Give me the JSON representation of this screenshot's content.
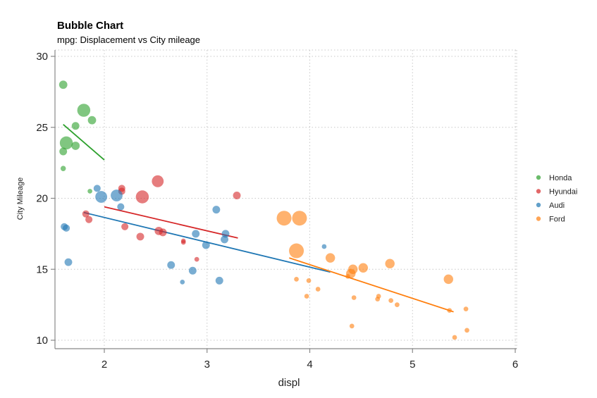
{
  "chart_data": {
    "type": "scatter",
    "title": "Bubble Chart",
    "subtitle": "mpg: Displacement vs City mileage",
    "xlabel": "displ",
    "ylabel": "City Mileage",
    "xlim": [
      1.5,
      6.0
    ],
    "ylim": [
      10,
      30
    ],
    "xticks": [
      "2",
      "3",
      "4",
      "5",
      "6"
    ],
    "yticks": [
      "10",
      "15",
      "20",
      "25",
      "30"
    ],
    "grid": true,
    "legend_position": "right",
    "series": [
      {
        "name": "Honda",
        "color": "#2ca02c",
        "points": [
          {
            "x": 1.6,
            "y": 28.0,
            "s": 1.4
          },
          {
            "x": 1.8,
            "y": 26.2,
            "s": 2.2
          },
          {
            "x": 1.88,
            "y": 25.5,
            "s": 1.4
          },
          {
            "x": 1.72,
            "y": 25.1,
            "s": 1.3
          },
          {
            "x": 1.63,
            "y": 23.9,
            "s": 2.2
          },
          {
            "x": 1.72,
            "y": 23.7,
            "s": 1.4
          },
          {
            "x": 1.6,
            "y": 23.3,
            "s": 1.3
          },
          {
            "x": 1.6,
            "y": 22.1,
            "s": 0.9
          },
          {
            "x": 1.86,
            "y": 20.5,
            "s": 0.8
          }
        ],
        "fit": [
          [
            1.6,
            25.2
          ],
          [
            2.0,
            22.7
          ]
        ]
      },
      {
        "name": "Hyundai",
        "color": "#d62728",
        "points": [
          {
            "x": 1.82,
            "y": 18.9,
            "s": 1.2
          },
          {
            "x": 1.85,
            "y": 18.5,
            "s": 1.2
          },
          {
            "x": 2.17,
            "y": 20.7,
            "s": 1.2
          },
          {
            "x": 2.17,
            "y": 20.5,
            "s": 1.2
          },
          {
            "x": 2.37,
            "y": 20.1,
            "s": 2.2
          },
          {
            "x": 2.52,
            "y": 21.2,
            "s": 2.0
          },
          {
            "x": 3.29,
            "y": 20.2,
            "s": 1.3
          },
          {
            "x": 2.2,
            "y": 18.0,
            "s": 1.2
          },
          {
            "x": 2.53,
            "y": 17.7,
            "s": 1.4
          },
          {
            "x": 2.57,
            "y": 17.6,
            "s": 1.3
          },
          {
            "x": 2.35,
            "y": 17.3,
            "s": 1.3
          },
          {
            "x": 2.77,
            "y": 17.0,
            "s": 0.8
          },
          {
            "x": 2.77,
            "y": 16.9,
            "s": 0.8
          },
          {
            "x": 2.9,
            "y": 15.7,
            "s": 0.8
          }
        ],
        "fit": [
          [
            2.0,
            19.4
          ],
          [
            3.3,
            17.2
          ]
        ]
      },
      {
        "name": "Audi",
        "color": "#1f77b4",
        "points": [
          {
            "x": 1.61,
            "y": 18.0,
            "s": 1.2
          },
          {
            "x": 1.63,
            "y": 17.9,
            "s": 1.2
          },
          {
            "x": 1.93,
            "y": 20.7,
            "s": 1.2
          },
          {
            "x": 1.97,
            "y": 20.1,
            "s": 2.0
          },
          {
            "x": 2.12,
            "y": 20.2,
            "s": 2.0
          },
          {
            "x": 2.16,
            "y": 19.4,
            "s": 1.2
          },
          {
            "x": 1.65,
            "y": 15.5,
            "s": 1.3
          },
          {
            "x": 3.09,
            "y": 19.2,
            "s": 1.3
          },
          {
            "x": 2.89,
            "y": 17.5,
            "s": 1.3
          },
          {
            "x": 3.18,
            "y": 17.5,
            "s": 1.3
          },
          {
            "x": 3.17,
            "y": 17.1,
            "s": 1.3
          },
          {
            "x": 2.99,
            "y": 16.7,
            "s": 1.3
          },
          {
            "x": 2.65,
            "y": 15.3,
            "s": 1.3
          },
          {
            "x": 2.86,
            "y": 14.9,
            "s": 1.3
          },
          {
            "x": 3.12,
            "y": 14.2,
            "s": 1.3
          },
          {
            "x": 2.76,
            "y": 14.1,
            "s": 0.8
          },
          {
            "x": 4.14,
            "y": 16.6,
            "s": 0.8
          }
        ],
        "fit": [
          [
            1.8,
            19.0
          ],
          [
            4.2,
            14.8
          ]
        ]
      },
      {
        "name": "Ford",
        "color": "#ff7f0e",
        "points": [
          {
            "x": 3.75,
            "y": 18.6,
            "s": 2.5
          },
          {
            "x": 3.9,
            "y": 18.6,
            "s": 2.5
          },
          {
            "x": 3.87,
            "y": 16.3,
            "s": 2.5
          },
          {
            "x": 4.2,
            "y": 15.8,
            "s": 1.6
          },
          {
            "x": 4.4,
            "y": 14.7,
            "s": 1.6
          },
          {
            "x": 4.42,
            "y": 15.0,
            "s": 1.6
          },
          {
            "x": 4.52,
            "y": 15.1,
            "s": 1.6
          },
          {
            "x": 4.78,
            "y": 15.4,
            "s": 1.6
          },
          {
            "x": 5.35,
            "y": 14.3,
            "s": 1.6
          },
          {
            "x": 4.37,
            "y": 14.5,
            "s": 0.8
          },
          {
            "x": 3.87,
            "y": 14.3,
            "s": 0.8
          },
          {
            "x": 3.99,
            "y": 14.2,
            "s": 0.8
          },
          {
            "x": 4.08,
            "y": 13.6,
            "s": 0.8
          },
          {
            "x": 3.97,
            "y": 13.1,
            "s": 0.8
          },
          {
            "x": 4.43,
            "y": 13.0,
            "s": 0.8
          },
          {
            "x": 4.66,
            "y": 12.9,
            "s": 0.8
          },
          {
            "x": 4.67,
            "y": 13.1,
            "s": 0.8
          },
          {
            "x": 4.79,
            "y": 12.8,
            "s": 0.8
          },
          {
            "x": 4.85,
            "y": 12.5,
            "s": 0.8
          },
          {
            "x": 5.36,
            "y": 12.1,
            "s": 0.8
          },
          {
            "x": 5.52,
            "y": 12.2,
            "s": 0.8
          },
          {
            "x": 4.41,
            "y": 11.0,
            "s": 0.8
          },
          {
            "x": 5.53,
            "y": 10.7,
            "s": 0.8
          },
          {
            "x": 5.41,
            "y": 10.2,
            "s": 0.8
          }
        ],
        "fit": [
          [
            3.8,
            15.8
          ],
          [
            5.4,
            12.0
          ]
        ]
      }
    ]
  }
}
